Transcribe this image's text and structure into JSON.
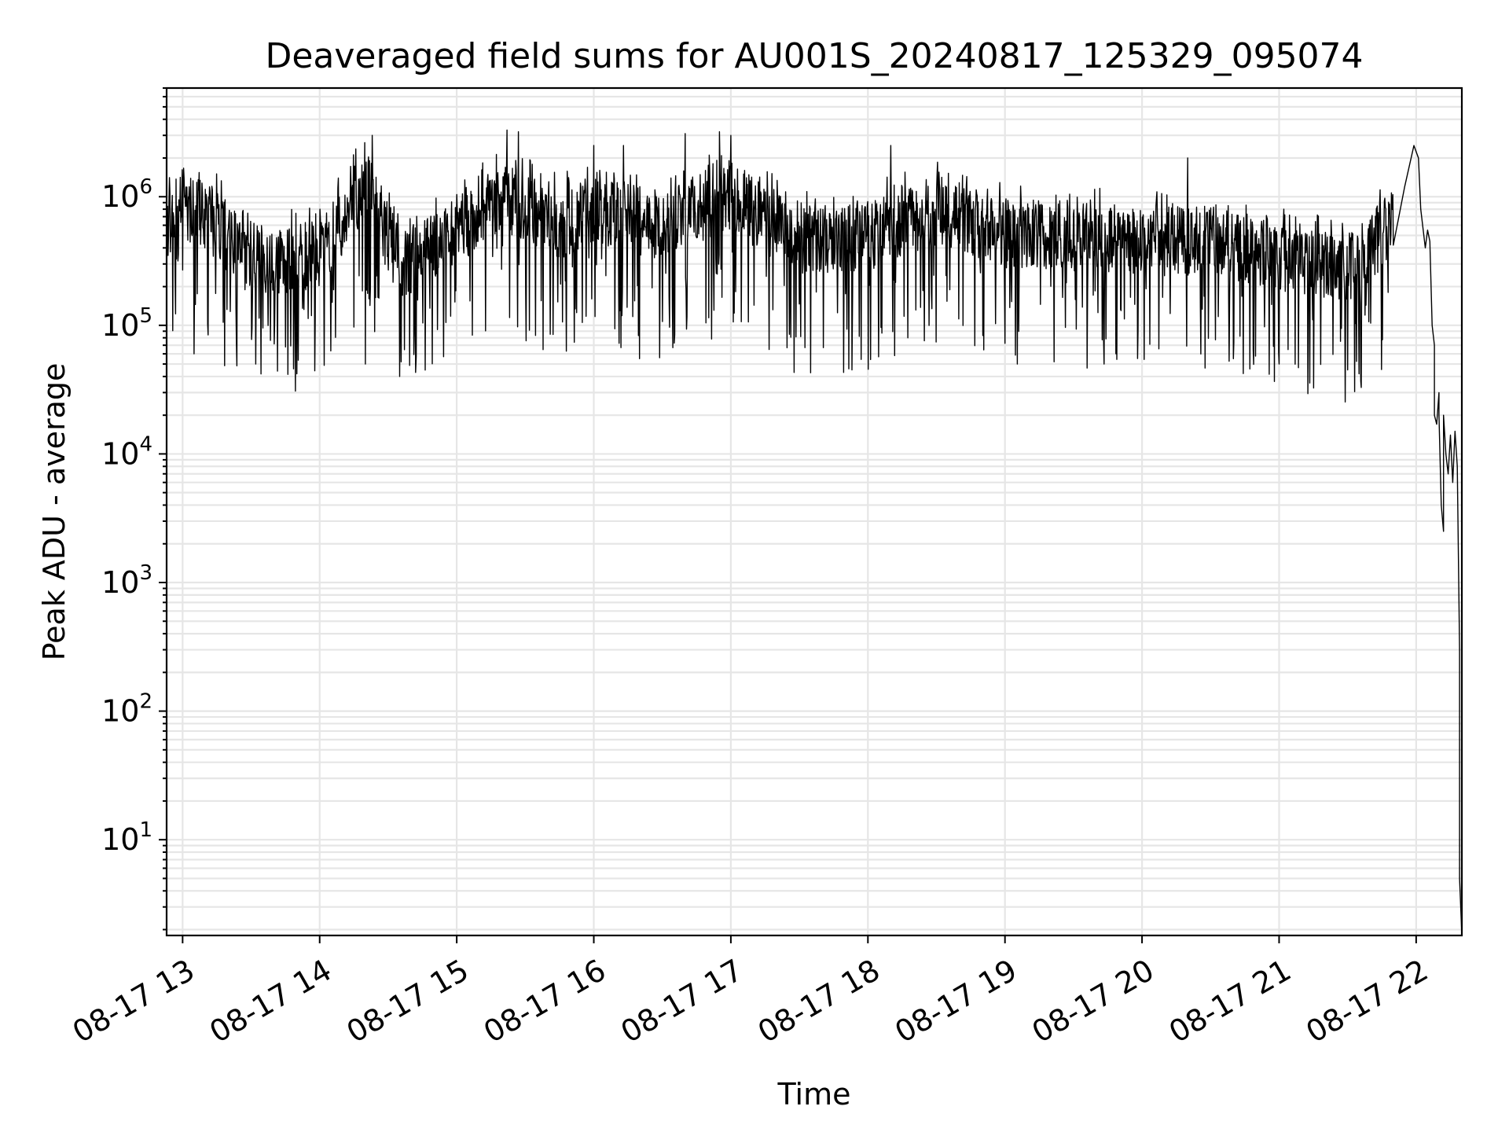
{
  "chart_data": {
    "type": "line",
    "title": "Deaveraged field sums for AU001S_20240817_125329_095074",
    "xlabel": "Time",
    "ylabel": "Peak ADU - average",
    "yscale": "log",
    "grid": true,
    "grid_minor": true,
    "xlim": [
      "2024-08-17 12:53",
      "2024-08-17 22:20"
    ],
    "ylim": [
      1.8,
      7000000
    ],
    "xticks": [
      "08-17 13",
      "08-17 14",
      "08-17 15",
      "08-17 16",
      "08-17 17",
      "08-17 18",
      "08-17 19",
      "08-17 20",
      "08-17 21",
      "08-17 22"
    ],
    "xtick_times": [
      "2024-08-17 13:00",
      "2024-08-17 14:00",
      "2024-08-17 15:00",
      "2024-08-17 16:00",
      "2024-08-17 17:00",
      "2024-08-17 18:00",
      "2024-08-17 19:00",
      "2024-08-17 20:00",
      "2024-08-17 21:00",
      "2024-08-17 22:00"
    ],
    "yticks": [
      {
        "value": 10,
        "base": "10",
        "exp": "1"
      },
      {
        "value": 100,
        "base": "10",
        "exp": "2"
      },
      {
        "value": 1000,
        "base": "10",
        "exp": "3"
      },
      {
        "value": 10000,
        "base": "10",
        "exp": "4"
      },
      {
        "value": 100000,
        "base": "10",
        "exp": "5"
      },
      {
        "value": 1000000,
        "base": "10",
        "exp": "6"
      }
    ],
    "series": [
      {
        "color": "#000000",
        "trend": {
          "x": [
            "2024-08-17 12:53",
            "2024-08-17 13:10",
            "2024-08-17 13:30",
            "2024-08-17 14:00",
            "2024-08-17 14:20",
            "2024-08-17 14:35",
            "2024-08-17 15:00",
            "2024-08-17 15:20",
            "2024-08-17 15:45",
            "2024-08-17 16:00",
            "2024-08-17 16:30",
            "2024-08-17 17:00",
            "2024-08-17 17:30",
            "2024-08-17 18:00",
            "2024-08-17 18:30",
            "2024-08-17 19:00",
            "2024-08-17 19:30",
            "2024-08-17 20:00",
            "2024-08-17 20:30",
            "2024-08-17 21:00",
            "2024-08-17 21:30",
            "2024-08-17 21:50"
          ],
          "y": [
            900000,
            750000,
            300000,
            350000,
            1300000,
            300000,
            500000,
            1000000,
            600000,
            800000,
            600000,
            1000000,
            450000,
            500000,
            800000,
            500000,
            500000,
            450000,
            450000,
            350000,
            280000,
            600000
          ]
        },
        "peaks": [
          {
            "x": "2024-08-17 14:23",
            "y": 3000000
          },
          {
            "x": "2024-08-17 15:22",
            "y": 3300000
          },
          {
            "x": "2024-08-17 15:27",
            "y": 3200000
          },
          {
            "x": "2024-08-17 16:00",
            "y": 2500000
          },
          {
            "x": "2024-08-17 16:13",
            "y": 2500000
          },
          {
            "x": "2024-08-17 16:40",
            "y": 3100000
          },
          {
            "x": "2024-08-17 16:55",
            "y": 3200000
          },
          {
            "x": "2024-08-17 17:00",
            "y": 3000000
          },
          {
            "x": "2024-08-17 18:10",
            "y": 2500000
          },
          {
            "x": "2024-08-17 20:20",
            "y": 2000000
          }
        ],
        "dips": [
          {
            "x": "2024-08-17 13:05",
            "y": 60000
          },
          {
            "x": "2024-08-17 13:32",
            "y": 50000
          },
          {
            "x": "2024-08-17 13:50",
            "y": 42000
          },
          {
            "x": "2024-08-17 14:20",
            "y": 50000
          },
          {
            "x": "2024-08-17 14:35",
            "y": 40000
          },
          {
            "x": "2024-08-17 14:42",
            "y": 43000
          },
          {
            "x": "2024-08-17 15:48",
            "y": 63000
          },
          {
            "x": "2024-08-17 16:20",
            "y": 55000
          },
          {
            "x": "2024-08-17 17:53",
            "y": 45000
          },
          {
            "x": "2024-08-17 20:40",
            "y": 55000
          },
          {
            "x": "2024-08-17 21:00",
            "y": 50000
          },
          {
            "x": "2024-08-17 21:30",
            "y": 45000
          },
          {
            "x": "2024-08-17 21:35",
            "y": 42000
          }
        ],
        "tail": {
          "x": [
            "2024-08-17 21:50",
            "2024-08-17 21:55",
            "2024-08-17 21:59",
            "2024-08-17 22:01",
            "2024-08-17 22:02",
            "2024-08-17 22:04",
            "2024-08-17 22:05",
            "2024-08-17 22:06",
            "2024-08-17 22:07",
            "2024-08-17 22:08",
            "2024-08-17 22:08",
            "2024-08-17 22:09",
            "2024-08-17 22:10",
            "2024-08-17 22:10",
            "2024-08-17 22:11",
            "2024-08-17 22:12",
            "2024-08-17 22:12",
            "2024-08-17 22:13",
            "2024-08-17 22:14",
            "2024-08-17 22:15",
            "2024-08-17 22:16",
            "2024-08-17 22:17",
            "2024-08-17 22:18",
            "2024-08-17 22:19",
            "2024-08-17 22:19",
            "2024-08-17 22:20"
          ],
          "y": [
            700000,
            1200000,
            2500000,
            2000000,
            800000,
            400000,
            550000,
            450000,
            100000,
            70000,
            20000,
            17000,
            30000,
            20000,
            4000,
            2500,
            20000,
            10000,
            7000,
            14000,
            6000,
            15000,
            8000,
            300,
            5,
            1.8
          ]
        }
      }
    ]
  }
}
